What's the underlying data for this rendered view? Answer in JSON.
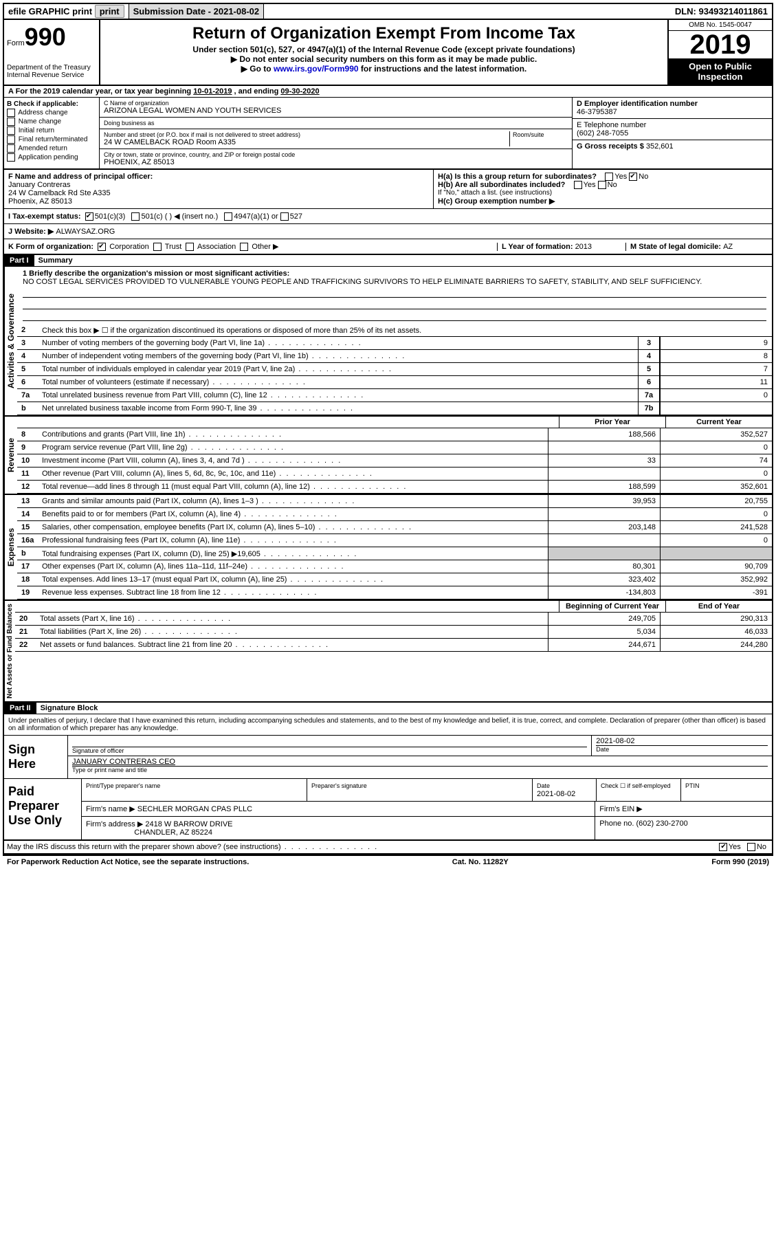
{
  "topbar": {
    "efile": "efile GRAPHIC print",
    "submission_label": "Submission Date - ",
    "submission_date": "2021-08-02",
    "dln_label": "DLN: ",
    "dln": "93493214011861"
  },
  "header": {
    "form_label": "Form",
    "form_num": "990",
    "title": "Return of Organization Exempt From Income Tax",
    "sub1": "Under section 501(c), 527, or 4947(a)(1) of the Internal Revenue Code (except private foundations)",
    "sub2": "▶ Do not enter social security numbers on this form as it may be made public.",
    "sub3_a": "▶ Go to ",
    "sub3_link": "www.irs.gov/Form990",
    "sub3_b": " for instructions and the latest information.",
    "dept": "Department of the Treasury\nInternal Revenue Service",
    "omb": "OMB No. 1545-0047",
    "year": "2019",
    "open": "Open to Public Inspection"
  },
  "section_a": {
    "text": "A For the 2019 calendar year, or tax year beginning ",
    "begin": "10-01-2019",
    "mid": " , and ending ",
    "end": "09-30-2020"
  },
  "col_b": {
    "label": "B Check if applicable:",
    "items": [
      "Address change",
      "Name change",
      "Initial return",
      "Final return/terminated",
      "Amended return",
      "Application pending"
    ]
  },
  "col_c": {
    "name_label": "C Name of organization",
    "name": "ARIZONA LEGAL WOMEN AND YOUTH SERVICES",
    "dba_label": "Doing business as",
    "dba": "",
    "addr_label": "Number and street (or P.O. box if mail is not delivered to street address)",
    "room_label": "Room/suite",
    "addr": "24 W CAMELBACK ROAD Room A335",
    "city_label": "City or town, state or province, country, and ZIP or foreign postal code",
    "city": "PHOENIX, AZ  85013"
  },
  "col_d": {
    "ein_label": "D Employer identification number",
    "ein": "46-3795387",
    "phone_label": "E Telephone number",
    "phone": "(602) 248-7055",
    "gross_label": "G Gross receipts $ ",
    "gross": "352,601"
  },
  "col_f": {
    "label": "F  Name and address of principal officer:",
    "name": "January Contreras",
    "addr1": "24 W Camelback Rd Ste A335",
    "addr2": "Phoenix, AZ  85013"
  },
  "col_h": {
    "ha": "H(a)  Is this a group return for subordinates?",
    "ha_yes": "Yes",
    "ha_no": "No",
    "hb": "H(b)  Are all subordinates included?",
    "hb_note": "If \"No,\" attach a list. (see instructions)",
    "hc": "H(c)  Group exemption number ▶"
  },
  "tax_status": {
    "label": "I  Tax-exempt status:",
    "opt1": "501(c)(3)",
    "opt2": "501(c) (   ) ◀ (insert no.)",
    "opt3": "4947(a)(1) or",
    "opt4": "527"
  },
  "website": {
    "label": "J  Website: ▶ ",
    "value": "ALWAYSAZ.ORG"
  },
  "k_row": {
    "label": "K Form of organization:",
    "opts": [
      "Corporation",
      "Trust",
      "Association",
      "Other ▶"
    ],
    "l": "L Year of formation: ",
    "l_val": "2013",
    "m": "M State of legal domicile: ",
    "m_val": "AZ"
  },
  "part1": {
    "header": "Part I",
    "title": "Summary",
    "side_a": "Activities & Governance",
    "side_r": "Revenue",
    "side_e": "Expenses",
    "side_n": "Net Assets or Fund Balances",
    "l1_label": "1  Briefly describe the organization's mission or most significant activities:",
    "l1": "NO COST LEGAL SERVICES PROVIDED TO VULNERABLE YOUNG PEOPLE AND TRAFFICKING SURVIVORS TO HELP ELIMINATE BARRIERS TO SAFETY, STABILITY, AND SELF SUFFICIENCY.",
    "l2": "Check this box ▶ ☐  if the organization discontinued its operations or disposed of more than 25% of its net assets.",
    "lines_ag": [
      {
        "n": "3",
        "d": "Number of voting members of the governing body (Part VI, line 1a)",
        "b": "3",
        "v": "9"
      },
      {
        "n": "4",
        "d": "Number of independent voting members of the governing body (Part VI, line 1b)",
        "b": "4",
        "v": "8"
      },
      {
        "n": "5",
        "d": "Total number of individuals employed in calendar year 2019 (Part V, line 2a)",
        "b": "5",
        "v": "7"
      },
      {
        "n": "6",
        "d": "Total number of volunteers (estimate if necessary)",
        "b": "6",
        "v": "11"
      },
      {
        "n": "7a",
        "d": "Total unrelated business revenue from Part VIII, column (C), line 12",
        "b": "7a",
        "v": "0"
      },
      {
        "n": "b",
        "d": "Net unrelated business taxable income from Form 990-T, line 39",
        "b": "7b",
        "v": ""
      }
    ],
    "col_prior": "Prior Year",
    "col_current": "Current Year",
    "lines_rev": [
      {
        "n": "8",
        "d": "Contributions and grants (Part VIII, line 1h)",
        "p": "188,566",
        "c": "352,527"
      },
      {
        "n": "9",
        "d": "Program service revenue (Part VIII, line 2g)",
        "p": "",
        "c": "0"
      },
      {
        "n": "10",
        "d": "Investment income (Part VIII, column (A), lines 3, 4, and 7d )",
        "p": "33",
        "c": "74"
      },
      {
        "n": "11",
        "d": "Other revenue (Part VIII, column (A), lines 5, 6d, 8c, 9c, 10c, and 11e)",
        "p": "",
        "c": "0"
      },
      {
        "n": "12",
        "d": "Total revenue—add lines 8 through 11 (must equal Part VIII, column (A), line 12)",
        "p": "188,599",
        "c": "352,601"
      }
    ],
    "lines_exp": [
      {
        "n": "13",
        "d": "Grants and similar amounts paid (Part IX, column (A), lines 1–3 )",
        "p": "39,953",
        "c": "20,755"
      },
      {
        "n": "14",
        "d": "Benefits paid to or for members (Part IX, column (A), line 4)",
        "p": "",
        "c": "0"
      },
      {
        "n": "15",
        "d": "Salaries, other compensation, employee benefits (Part IX, column (A), lines 5–10)",
        "p": "203,148",
        "c": "241,528"
      },
      {
        "n": "16a",
        "d": "Professional fundraising fees (Part IX, column (A), line 11e)",
        "p": "",
        "c": "0"
      },
      {
        "n": "b",
        "d": "Total fundraising expenses (Part IX, column (D), line 25) ▶19,605",
        "p": "shade",
        "c": "shade"
      },
      {
        "n": "17",
        "d": "Other expenses (Part IX, column (A), lines 11a–11d, 11f–24e)",
        "p": "80,301",
        "c": "90,709"
      },
      {
        "n": "18",
        "d": "Total expenses. Add lines 13–17 (must equal Part IX, column (A), line 25)",
        "p": "323,402",
        "c": "352,992"
      },
      {
        "n": "19",
        "d": "Revenue less expenses. Subtract line 18 from line 12",
        "p": "-134,803",
        "c": "-391"
      }
    ],
    "col_begin": "Beginning of Current Year",
    "col_end": "End of Year",
    "lines_net": [
      {
        "n": "20",
        "d": "Total assets (Part X, line 16)",
        "p": "249,705",
        "c": "290,313"
      },
      {
        "n": "21",
        "d": "Total liabilities (Part X, line 26)",
        "p": "5,034",
        "c": "46,033"
      },
      {
        "n": "22",
        "d": "Net assets or fund balances. Subtract line 21 from line 20",
        "p": "244,671",
        "c": "244,280"
      }
    ]
  },
  "part2": {
    "header": "Part II",
    "title": "Signature Block",
    "declaration": "Under penalties of perjury, I declare that I have examined this return, including accompanying schedules and statements, and to the best of my knowledge and belief, it is true, correct, and complete. Declaration of preparer (other than officer) is based on all information of which preparer has any knowledge.",
    "sign_here": "Sign Here",
    "sig_officer": "Signature of officer",
    "sig_date_label": "Date",
    "sig_date": "2021-08-02",
    "sig_name": "JANUARY CONTRERAS  CEO",
    "sig_name_label": "Type or print name and title",
    "paid": "Paid Preparer Use Only",
    "prep_name_label": "Print/Type preparer's name",
    "prep_sig_label": "Preparer's signature",
    "prep_date_label": "Date",
    "prep_date": "2021-08-02",
    "prep_check": "Check ☐ if self-employed",
    "ptin_label": "PTIN",
    "firm_name_label": "Firm's name      ▶ ",
    "firm_name": "SECHLER MORGAN CPAS PLLC",
    "firm_ein_label": "Firm's EIN ▶",
    "firm_addr_label": "Firm's address ▶ ",
    "firm_addr1": "2418 W BARROW DRIVE",
    "firm_addr2": "CHANDLER, AZ  85224",
    "firm_phone_label": "Phone no. ",
    "firm_phone": "(602) 230-2700",
    "discuss": "May the IRS discuss this return with the preparer shown above? (see instructions)",
    "yes": "Yes",
    "no": "No"
  },
  "footer": {
    "left": "For Paperwork Reduction Act Notice, see the separate instructions.",
    "mid": "Cat. No. 11282Y",
    "right": "Form 990 (2019)"
  }
}
